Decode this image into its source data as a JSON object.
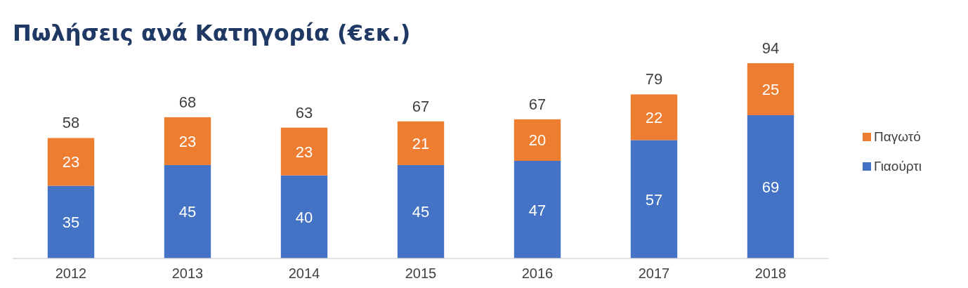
{
  "chart_data": {
    "type": "bar",
    "title": "Πωλήσεις ανά Κατηγορία (€εκ.)",
    "categories": [
      "2012",
      "2013",
      "2014",
      "2015",
      "2016",
      "2017",
      "2018"
    ],
    "stacked": true,
    "data_labels": true,
    "legend": "right",
    "totals": [
      "58",
      "68",
      "63",
      "67",
      "67",
      "79",
      "94"
    ],
    "series": [
      {
        "name": "Γιαούρτι",
        "color": "#4472c4",
        "values": [
          35,
          45,
          40,
          45,
          47,
          57,
          69
        ]
      },
      {
        "name": "Παγωτό",
        "color": "#ed7d31",
        "values": [
          23,
          23,
          23,
          21,
          20,
          22,
          25
        ]
      }
    ]
  }
}
